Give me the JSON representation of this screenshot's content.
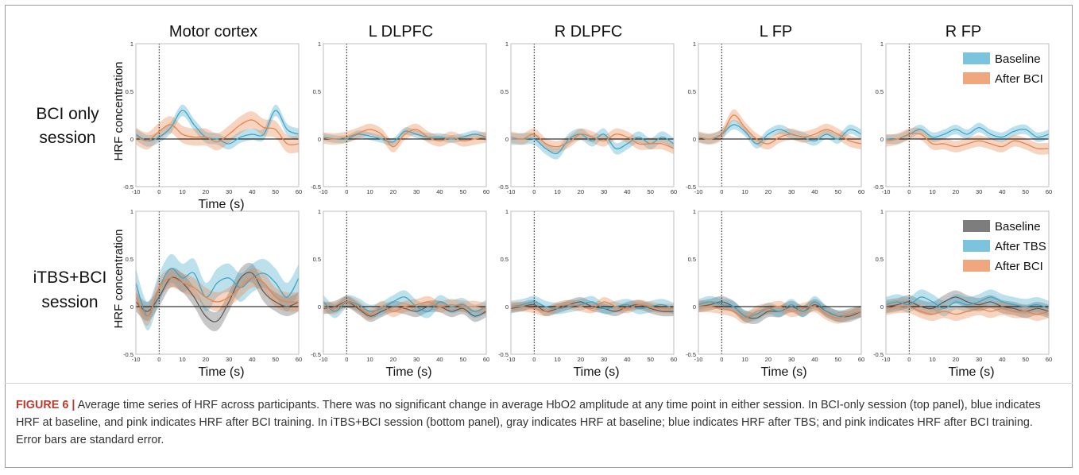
{
  "chart_data": [
    {
      "type": "line",
      "panel": "Motor cortex",
      "row": "BCI only session",
      "title": "Motor cortex",
      "xlabel": "Time (s)",
      "ylabel": "HRF concentration",
      "xlim": [
        -10,
        60
      ],
      "ylim": [
        -0.5,
        1
      ],
      "x": [
        -10,
        -5,
        0,
        5,
        10,
        15,
        20,
        25,
        30,
        35,
        40,
        45,
        50,
        55,
        60
      ],
      "series": [
        {
          "name": "Baseline",
          "color": "#3ea6c9",
          "band": 0.06,
          "values": [
            0.05,
            -0.02,
            0.02,
            0.12,
            0.3,
            0.15,
            0.02,
            0.0,
            -0.05,
            0.02,
            0.05,
            0.05,
            0.3,
            0.1,
            0.05
          ]
        },
        {
          "name": "After BCI",
          "color": "#e9834b",
          "band": 0.09,
          "values": [
            0.03,
            -0.02,
            0.08,
            0.15,
            0.05,
            0.02,
            0.02,
            -0.03,
            0.05,
            0.15,
            0.2,
            0.12,
            0.1,
            -0.05,
            -0.05
          ]
        }
      ]
    },
    {
      "type": "line",
      "panel": "L DLPFC",
      "row": "BCI only session",
      "title": "L DLPFC",
      "xlabel": "",
      "ylabel": "",
      "xlim": [
        -10,
        60
      ],
      "ylim": [
        -0.5,
        1
      ],
      "x": [
        -10,
        -5,
        0,
        5,
        10,
        15,
        20,
        25,
        30,
        35,
        40,
        45,
        50,
        55,
        60
      ],
      "series": [
        {
          "name": "Baseline",
          "color": "#3ea6c9",
          "band": 0.04,
          "values": [
            0.02,
            0.0,
            0.0,
            0.05,
            0.03,
            0.0,
            -0.03,
            0.08,
            0.05,
            0.02,
            0.02,
            0.0,
            0.02,
            0.05,
            0.02
          ]
        },
        {
          "name": "After BCI",
          "color": "#e9834b",
          "band": 0.06,
          "values": [
            0.01,
            0.0,
            0.02,
            0.06,
            0.1,
            0.05,
            -0.08,
            0.05,
            0.1,
            0.02,
            -0.02,
            0.02,
            -0.02,
            0.0,
            0.02
          ]
        }
      ]
    },
    {
      "type": "line",
      "panel": "R DLPFC",
      "row": "BCI only session",
      "title": "R DLPFC",
      "xlabel": "",
      "ylabel": "",
      "xlim": [
        -10,
        60
      ],
      "ylim": [
        -0.5,
        1
      ],
      "x": [
        -10,
        -5,
        0,
        5,
        10,
        15,
        20,
        25,
        30,
        35,
        40,
        45,
        50,
        55,
        60
      ],
      "series": [
        {
          "name": "Baseline",
          "color": "#3ea6c9",
          "band": 0.06,
          "values": [
            0.0,
            0.0,
            0.0,
            -0.1,
            -0.15,
            0.0,
            0.05,
            -0.02,
            0.05,
            -0.1,
            -0.05,
            0.02,
            -0.05,
            0.02,
            -0.05
          ]
        },
        {
          "name": "After BCI",
          "color": "#e9834b",
          "band": 0.06,
          "values": [
            0.02,
            0.0,
            0.05,
            -0.05,
            -0.08,
            -0.03,
            0.05,
            0.02,
            -0.02,
            0.05,
            0.02,
            -0.05,
            -0.05,
            -0.05,
            -0.1
          ]
        }
      ]
    },
    {
      "type": "line",
      "panel": "L FP",
      "row": "BCI only session",
      "title": "L FP",
      "xlabel": "",
      "ylabel": "",
      "xlim": [
        -10,
        60
      ],
      "ylim": [
        -0.5,
        1
      ],
      "x": [
        -10,
        -5,
        0,
        5,
        10,
        15,
        20,
        25,
        30,
        35,
        40,
        45,
        50,
        55,
        60
      ],
      "series": [
        {
          "name": "Baseline",
          "color": "#3ea6c9",
          "band": 0.05,
          "values": [
            0.02,
            0.0,
            0.05,
            0.15,
            0.08,
            -0.05,
            0.05,
            0.1,
            0.05,
            0.02,
            -0.02,
            0.05,
            0.0,
            0.1,
            0.05
          ]
        },
        {
          "name": "After BCI",
          "color": "#e9834b",
          "band": 0.06,
          "values": [
            0.02,
            0.0,
            0.05,
            0.25,
            0.12,
            0.0,
            -0.05,
            0.02,
            0.05,
            0.02,
            0.05,
            0.1,
            0.05,
            -0.02,
            -0.05
          ]
        }
      ]
    },
    {
      "type": "line",
      "panel": "R FP",
      "row": "BCI only session",
      "title": "R FP",
      "xlabel": "",
      "ylabel": "",
      "xlim": [
        -10,
        60
      ],
      "ylim": [
        -0.5,
        1
      ],
      "x": [
        -10,
        -5,
        0,
        5,
        10,
        15,
        20,
        25,
        30,
        35,
        40,
        45,
        50,
        55,
        60
      ],
      "series": [
        {
          "name": "Baseline",
          "color": "#3ea6c9",
          "band": 0.05,
          "values": [
            0.0,
            0.0,
            0.05,
            0.1,
            0.02,
            0.05,
            0.1,
            0.05,
            0.12,
            0.05,
            0.02,
            0.08,
            0.1,
            0.02,
            0.05
          ]
        },
        {
          "name": "After BCI",
          "color": "#e9834b",
          "band": 0.06,
          "values": [
            -0.02,
            0.0,
            0.05,
            0.05,
            -0.05,
            -0.05,
            -0.08,
            -0.05,
            -0.02,
            -0.05,
            -0.08,
            -0.02,
            -0.05,
            -0.1,
            -0.1
          ]
        }
      ]
    },
    {
      "type": "line",
      "panel": "Motor cortex",
      "row": "iTBS+BCI session",
      "title": "",
      "xlabel": "Time (s)",
      "ylabel": "HRF concentration",
      "xlim": [
        -10,
        60
      ],
      "ylim": [
        -0.5,
        1
      ],
      "x": [
        -10,
        -5,
        0,
        5,
        10,
        15,
        20,
        25,
        30,
        35,
        40,
        45,
        50,
        55,
        60
      ],
      "series": [
        {
          "name": "Baseline",
          "color": "#5e5e5e",
          "band": 0.1,
          "values": [
            0.05,
            -0.05,
            0.1,
            0.3,
            0.25,
            0.1,
            -0.1,
            -0.15,
            0.05,
            0.3,
            0.35,
            0.15,
            0.05,
            0.0,
            0.05
          ]
        },
        {
          "name": "After TBS",
          "color": "#3ea6c9",
          "band": 0.15,
          "values": [
            0.25,
            -0.1,
            0.2,
            0.4,
            0.3,
            0.35,
            0.1,
            0.25,
            0.3,
            0.2,
            0.3,
            0.35,
            0.25,
            0.1,
            0.3
          ]
        },
        {
          "name": "After BCI",
          "color": "#e9834b",
          "band": 0.1,
          "values": [
            0.1,
            -0.1,
            0.2,
            0.3,
            0.25,
            0.2,
            0.1,
            0.05,
            0.1,
            0.2,
            0.3,
            0.25,
            0.1,
            0.05,
            0.05
          ]
        }
      ]
    },
    {
      "type": "line",
      "panel": "L DLPFC",
      "row": "iTBS+BCI session",
      "title": "",
      "xlabel": "Time (s)",
      "ylabel": "",
      "xlim": [
        -10,
        60
      ],
      "ylim": [
        -0.5,
        1
      ],
      "x": [
        -10,
        -5,
        0,
        5,
        10,
        15,
        20,
        25,
        30,
        35,
        40,
        45,
        50,
        55,
        60
      ],
      "series": [
        {
          "name": "Baseline",
          "color": "#5e5e5e",
          "band": 0.06,
          "values": [
            -0.02,
            0.0,
            0.05,
            -0.02,
            -0.1,
            -0.05,
            0.0,
            -0.02,
            -0.05,
            0.0,
            0.0,
            -0.05,
            -0.02,
            -0.1,
            -0.05
          ]
        },
        {
          "name": "After TBS",
          "color": "#3ea6c9",
          "band": 0.07,
          "values": [
            0.05,
            -0.05,
            0.05,
            0.02,
            -0.05,
            -0.02,
            0.05,
            0.1,
            0.0,
            -0.05,
            0.05,
            0.0,
            0.02,
            -0.05,
            0.0
          ]
        },
        {
          "name": "After BCI",
          "color": "#e9834b",
          "band": 0.06,
          "values": [
            0.0,
            -0.02,
            0.05,
            0.0,
            -0.08,
            0.0,
            -0.05,
            0.0,
            0.02,
            0.05,
            0.0,
            0.02,
            0.0,
            0.0,
            -0.02
          ]
        }
      ]
    },
    {
      "type": "line",
      "panel": "R DLPFC",
      "row": "iTBS+BCI session",
      "title": "",
      "xlabel": "Time (s)",
      "ylabel": "",
      "xlim": [
        -10,
        60
      ],
      "ylim": [
        -0.5,
        1
      ],
      "x": [
        -10,
        -5,
        0,
        5,
        10,
        15,
        20,
        25,
        30,
        35,
        40,
        45,
        50,
        55,
        60
      ],
      "series": [
        {
          "name": "Baseline",
          "color": "#5e5e5e",
          "band": 0.05,
          "values": [
            -0.02,
            0.0,
            0.02,
            -0.05,
            -0.02,
            0.02,
            0.05,
            0.0,
            -0.02,
            -0.05,
            0.0,
            0.02,
            -0.02,
            -0.05,
            -0.05
          ]
        },
        {
          "name": "After TBS",
          "color": "#3ea6c9",
          "band": 0.06,
          "values": [
            0.0,
            0.02,
            0.05,
            0.0,
            -0.02,
            0.0,
            0.02,
            0.05,
            -0.02,
            0.0,
            0.02,
            -0.02,
            0.0,
            0.02,
            -0.02
          ]
        },
        {
          "name": "After BCI",
          "color": "#e9834b",
          "band": 0.05,
          "values": [
            0.0,
            0.0,
            -0.02,
            -0.05,
            0.0,
            0.02,
            0.0,
            -0.02,
            0.05,
            0.0,
            -0.02,
            0.02,
            0.0,
            -0.02,
            -0.02
          ]
        }
      ]
    },
    {
      "type": "line",
      "panel": "L FP",
      "row": "iTBS+BCI session",
      "title": "",
      "xlabel": "Time (s)",
      "ylabel": "",
      "xlim": [
        -10,
        60
      ],
      "ylim": [
        -0.5,
        1
      ],
      "x": [
        -10,
        -5,
        0,
        5,
        10,
        15,
        20,
        25,
        30,
        35,
        40,
        45,
        50,
        55,
        60
      ],
      "series": [
        {
          "name": "Baseline",
          "color": "#5e5e5e",
          "band": 0.06,
          "values": [
            0.0,
            0.02,
            0.05,
            0.0,
            -0.1,
            -0.12,
            -0.05,
            -0.05,
            0.0,
            -0.05,
            0.02,
            -0.05,
            -0.1,
            -0.1,
            -0.05
          ]
        },
        {
          "name": "After TBS",
          "color": "#3ea6c9",
          "band": 0.06,
          "values": [
            0.02,
            0.05,
            0.02,
            0.0,
            -0.1,
            -0.08,
            -0.02,
            -0.05,
            0.02,
            -0.05,
            0.05,
            -0.05,
            -0.1,
            -0.08,
            -0.05
          ]
        },
        {
          "name": "After BCI",
          "color": "#e9834b",
          "band": 0.06,
          "values": [
            0.0,
            0.0,
            -0.02,
            -0.05,
            -0.12,
            -0.05,
            -0.02,
            0.0,
            -0.05,
            -0.02,
            0.0,
            -0.08,
            -0.12,
            -0.08,
            -0.05
          ]
        }
      ]
    },
    {
      "type": "line",
      "panel": "R FP",
      "row": "iTBS+BCI session",
      "title": "",
      "xlabel": "Time (s)",
      "ylabel": "",
      "xlim": [
        -10,
        60
      ],
      "ylim": [
        -0.5,
        1
      ],
      "x": [
        -10,
        -5,
        0,
        5,
        10,
        15,
        20,
        25,
        30,
        35,
        40,
        45,
        50,
        55,
        60
      ],
      "series": [
        {
          "name": "Baseline",
          "color": "#5e5e5e",
          "band": 0.07,
          "values": [
            0.0,
            0.02,
            0.05,
            0.0,
            -0.02,
            0.05,
            0.1,
            0.05,
            0.02,
            0.05,
            0.0,
            -0.02,
            -0.05,
            -0.02,
            -0.05
          ]
        },
        {
          "name": "After TBS",
          "color": "#3ea6c9",
          "band": 0.08,
          "values": [
            0.02,
            0.05,
            0.02,
            0.1,
            0.05,
            -0.02,
            0.05,
            0.02,
            0.05,
            0.1,
            0.05,
            0.02,
            0.0,
            0.02,
            -0.02
          ]
        },
        {
          "name": "After BCI",
          "color": "#e9834b",
          "band": 0.07,
          "values": [
            -0.02,
            0.0,
            0.0,
            -0.05,
            -0.08,
            -0.05,
            -0.08,
            -0.05,
            -0.02,
            -0.05,
            -0.02,
            -0.05,
            -0.05,
            -0.08,
            -0.05
          ]
        }
      ]
    }
  ],
  "panel_titles": [
    "Motor cortex",
    "L DLPFC",
    "R DLPFC",
    "L FP",
    "R FP"
  ],
  "row_labels": {
    "top": [
      "BCI only",
      "session"
    ],
    "bottom": [
      "iTBS+BCI",
      "session"
    ]
  },
  "y_ticks": [
    "1",
    "0.5",
    "0",
    "-0.5"
  ],
  "x_ticks": [
    "-10",
    "0",
    "10",
    "20",
    "30",
    "40",
    "50",
    "60"
  ],
  "legends": {
    "top": [
      {
        "label": "Baseline",
        "color": "#7cc3de"
      },
      {
        "label": "After BCI",
        "color": "#f0a77e"
      }
    ],
    "bottom": [
      {
        "label": "Baseline",
        "color": "#7d7d7d"
      },
      {
        "label": "After TBS",
        "color": "#7cc3de"
      },
      {
        "label": "After BCI",
        "color": "#f0a77e"
      }
    ]
  },
  "caption": {
    "figure_number": "FIGURE 6 |",
    "text": " Average time series of HRF across participants. There was no significant change in average HbO2 amplitude at any time point in either session. In BCI-only session (top panel), blue indicates HRF at baseline, and pink indicates HRF after BCI training. In iTBS+BCI session (bottom panel), gray indicates HRF at baseline; blue indicates HRF after TBS; and pink indicates HRF after BCI training. Error bars are standard error."
  }
}
